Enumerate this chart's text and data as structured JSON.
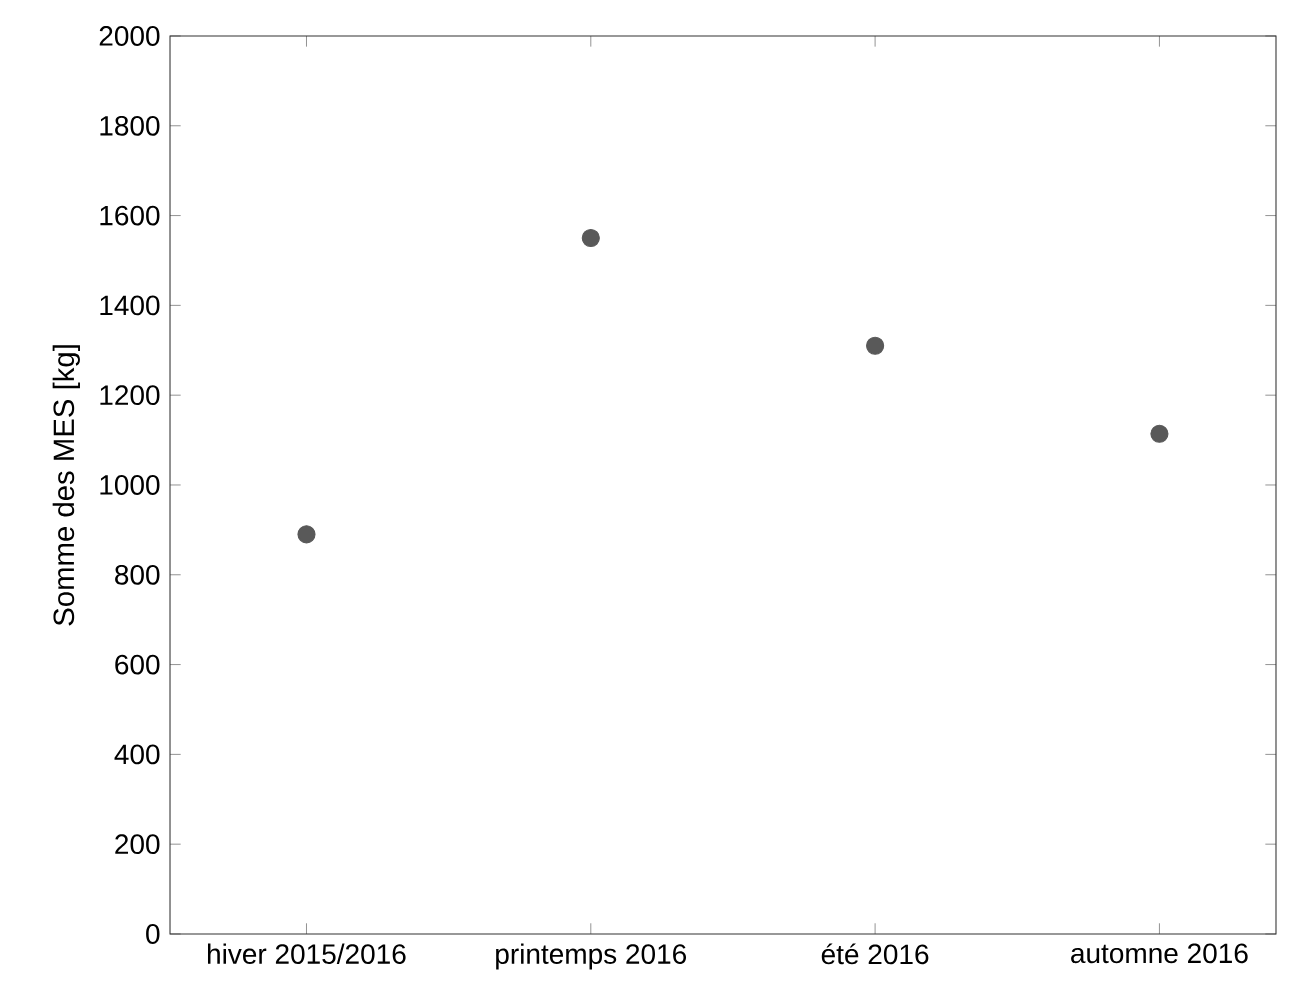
{
  "chart_data": {
    "type": "scatter",
    "ylabel": "Somme des MES [kg]",
    "categories": [
      "hiver 2015/2016",
      "printemps 2016",
      "été 2016",
      "automne 2016"
    ],
    "values": [
      890,
      1550,
      1310,
      1114
    ],
    "color": "#595959",
    "marker": "circle",
    "ylim": [
      0,
      2000
    ],
    "yticks": [
      0,
      200,
      400,
      600,
      800,
      1000,
      1200,
      1400,
      1600,
      1800,
      2000
    ],
    "grid": false
  }
}
